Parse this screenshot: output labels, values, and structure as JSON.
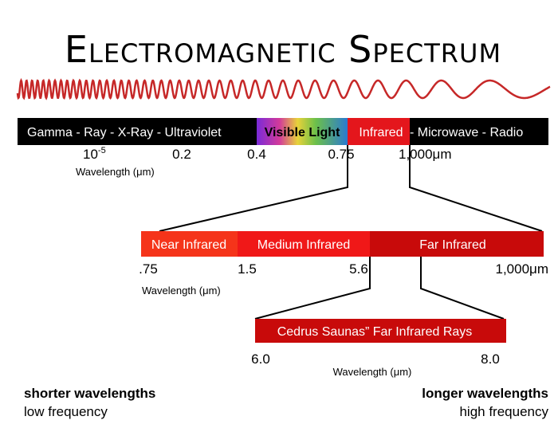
{
  "title": "Electromagnetic Spectrum",
  "spectrum": {
    "segments": [
      "Gamma -  Ray - X-Ray - Ultraviolet",
      "Visible Light",
      "Infrared",
      "- Microwave - Radio"
    ],
    "ticks": [
      {
        "base": "10",
        "exponent": "-5"
      },
      "0.2",
      "0.4",
      "0.75",
      "1,000μm"
    ],
    "axis_label": "Wavelength (μm)"
  },
  "infrared": {
    "segments": [
      "Near Infrared",
      "Medium Infrared",
      "Far Infrared"
    ],
    "ticks": [
      ".75",
      "1.5",
      "5.6",
      "1,000μm"
    ],
    "axis_label": "Wavelength (μm)"
  },
  "sauna": {
    "label": "Cedrus Saunas” Far Infrared Rays",
    "ticks": [
      "6.0",
      "8.0"
    ],
    "axis_label": "Wavelength (μm)"
  },
  "footer": {
    "left": {
      "title": "shorter wavelengths",
      "subtitle": "low frequency"
    },
    "right": {
      "title": "longer wavelengths",
      "subtitle": "high frequency"
    }
  }
}
